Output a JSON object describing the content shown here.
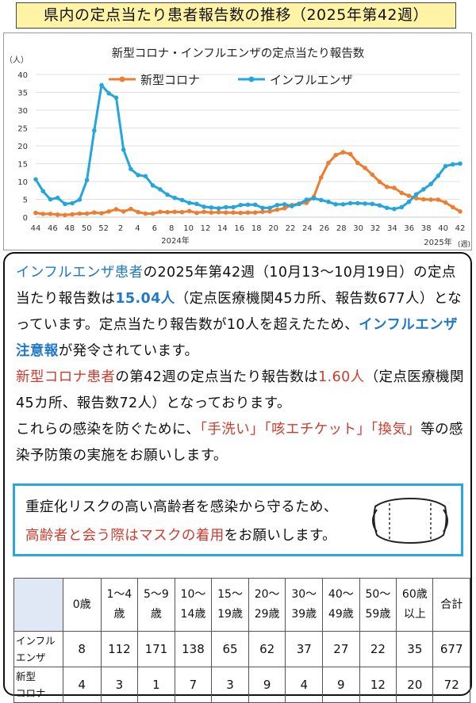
{
  "title": "県内の定点当たり患者報告数の推移（2025年第42週）",
  "chart_data": {
    "type": "line",
    "title": "新型コロナ・インフルエンザの定点当たり報告数",
    "ylabel": "（人）",
    "xlabel": "(週)",
    "ylim": [
      0,
      40
    ],
    "yticks": [
      0,
      5,
      10,
      15,
      20,
      25,
      30,
      35,
      40
    ],
    "x_tick_labels": [
      "44",
      "46",
      "48",
      "50",
      "52",
      "2",
      "4",
      "6",
      "8",
      "10",
      "12",
      "14",
      "16",
      "18",
      "20",
      "22",
      "24",
      "26",
      "28",
      "30",
      "32",
      "34",
      "36",
      "38",
      "40",
      "42"
    ],
    "year_labels": [
      "2024年",
      "2025年"
    ],
    "series": [
      {
        "name": "新型コロナ",
        "color": "#ed7d31",
        "values": [
          1.2,
          0.9,
          0.9,
          0.7,
          0.6,
          0.8,
          1.0,
          1.0,
          1.3,
          1.1,
          1.6,
          2.2,
          1.6,
          2.3,
          1.4,
          1.0,
          1.0,
          1.5,
          1.4,
          1.5,
          1.4,
          1.7,
          1.2,
          1.5,
          1.3,
          1.4,
          1.3,
          1.3,
          1.2,
          1.3,
          1.3,
          1.5,
          1.6,
          2.1,
          2.5,
          3.4,
          3.8,
          4.0,
          5.7,
          11.1,
          15.2,
          17.4,
          18.2,
          17.7,
          15.2,
          13.8,
          11.9,
          9.9,
          8.5,
          8.2,
          6.8,
          6.0,
          5.3,
          5.0,
          4.9,
          4.9,
          4.1,
          2.8,
          1.6
        ]
      },
      {
        "name": "インフルエンザ",
        "color": "#23a6dc",
        "values": [
          10.6,
          7.3,
          5.0,
          5.4,
          3.7,
          3.9,
          4.9,
          10.4,
          24.3,
          37.0,
          34.7,
          33.5,
          18.9,
          13.5,
          11.8,
          11.5,
          8.9,
          7.8,
          6.3,
          5.4,
          4.8,
          4.0,
          3.7,
          2.9,
          2.7,
          2.5,
          2.8,
          2.8,
          3.4,
          3.5,
          3.5,
          2.6,
          2.6,
          3.4,
          3.6,
          3.1,
          3.7,
          4.9,
          5.3,
          4.8,
          4.3,
          3.6,
          3.6,
          3.9,
          3.9,
          3.8,
          3.7,
          3.3,
          2.6,
          2.3,
          2.8,
          4.3,
          6.4,
          7.8,
          9.3,
          11.6,
          14.3,
          14.8,
          15.0
        ]
      }
    ]
  },
  "message": {
    "p1_flu": "インフルエンザ患者",
    "p1_mid": "の2025年第42週（10月13〜10月19日）の定点当たり報告数は",
    "p1_num": "15.04人",
    "p1_tail": "（定点医療機関45カ所、報告数677人）となっています。定点当たり報告数が10人を超えたため、",
    "p1_alert": "インフルエンザ注意報",
    "p1_end": "が発令されています。",
    "p2_covid": "新型コロナ患者",
    "p2_mid": "の第42週の定点当たり報告数は",
    "p2_num": "1.60人",
    "p2_tail": "（定点医療機関45カ所、報告数72人）となっております。",
    "p3_head": "これらの感染を防ぐために、",
    "p3_hand": "「手洗い」",
    "p3_cough": "「咳エチケット」",
    "p3_vent": "「換気」",
    "p3_tail": "等の感染予防策の実施をお願いします。"
  },
  "notice": {
    "line1": "重症化リスクの高い高齢者を感染から守るため、",
    "line2_red": "高齢者と会う際はマスクの着用",
    "line2_tail": "をお願いします。",
    "icon": "mask-icon"
  },
  "table": {
    "headers": [
      [
        "0歳"
      ],
      [
        "1〜4",
        "歳"
      ],
      [
        "5〜9",
        "歳"
      ],
      [
        "10〜",
        "14歳"
      ],
      [
        "15〜",
        "19歳"
      ],
      [
        "20〜",
        "29歳"
      ],
      [
        "30〜",
        "39歳"
      ],
      [
        "40〜",
        "49歳"
      ],
      [
        "50〜",
        "59歳"
      ],
      [
        "60歳",
        "以上"
      ],
      [
        "合計"
      ]
    ],
    "rows": [
      {
        "label": [
          "インフル",
          "エンザ"
        ],
        "values": [
          "8",
          "112",
          "171",
          "138",
          "65",
          "62",
          "37",
          "27",
          "22",
          "35",
          "677"
        ]
      },
      {
        "label": [
          "新型",
          "コロナ"
        ],
        "values": [
          "4",
          "3",
          "1",
          "7",
          "3",
          "9",
          "4",
          "9",
          "12",
          "20",
          "72"
        ]
      }
    ]
  }
}
